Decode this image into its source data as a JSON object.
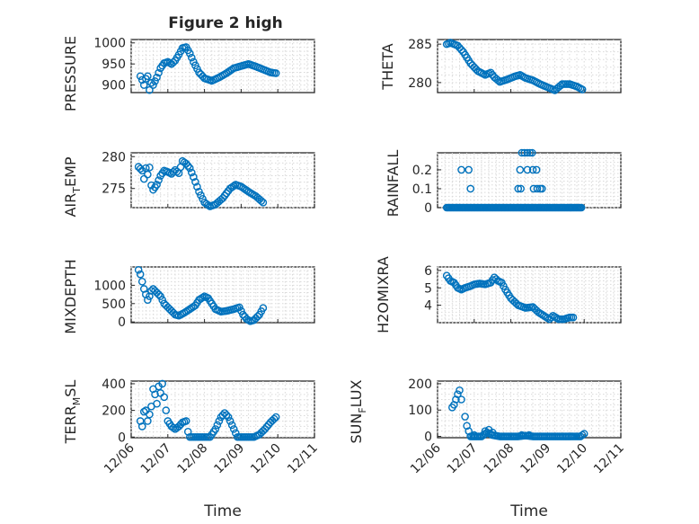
{
  "figure_title": "Figure 2 high",
  "colors": {
    "marker": "#0072bd",
    "axes": "#262626",
    "grid": "#d9d9d9",
    "background": "#ffffff"
  },
  "chart_data": [
    {
      "type": "scatter",
      "name": "PRESSURE",
      "ylabel": "PRESSURE",
      "title": "Figure 2 high",
      "xlim": [
        0,
        5
      ],
      "ylim": [
        882,
        1008
      ],
      "yticks": [
        900,
        950,
        1000
      ],
      "ytick_labels": [
        "900",
        "950",
        "1000"
      ],
      "xticks": [
        0,
        1,
        2,
        3,
        4,
        5
      ],
      "xtick_labels": [],
      "grid": true,
      "keys": [
        [
          0.25,
          921
        ],
        [
          0.3,
          912
        ],
        [
          0.35,
          900
        ],
        [
          0.4,
          915
        ],
        [
          0.45,
          921
        ],
        [
          0.5,
          888
        ],
        [
          0.55,
          905
        ],
        [
          0.6,
          900
        ],
        [
          0.7,
          918
        ],
        [
          0.8,
          940
        ],
        [
          0.9,
          952
        ],
        [
          1.0,
          955
        ],
        [
          1.1,
          950
        ],
        [
          1.2,
          958
        ],
        [
          1.3,
          972
        ],
        [
          1.4,
          988
        ],
        [
          1.5,
          990
        ],
        [
          1.6,
          975
        ],
        [
          1.7,
          955
        ],
        [
          1.85,
          930
        ],
        [
          2.0,
          916
        ],
        [
          2.2,
          910
        ],
        [
          2.4,
          918
        ],
        [
          2.6,
          928
        ],
        [
          2.8,
          940
        ],
        [
          3.0,
          945
        ],
        [
          3.2,
          950
        ],
        [
          3.4,
          944
        ],
        [
          3.6,
          937
        ],
        [
          3.8,
          930
        ],
        [
          3.95,
          928
        ]
      ]
    },
    {
      "type": "scatter",
      "name": "THETA",
      "ylabel": "THETA",
      "xlim": [
        0,
        5
      ],
      "ylim": [
        278.7,
        285.6
      ],
      "yticks": [
        280,
        285
      ],
      "ytick_labels": [
        "280",
        "285"
      ],
      "xticks": [
        0,
        1,
        2,
        3,
        4,
        5
      ],
      "xtick_labels": [],
      "grid": true,
      "keys": [
        [
          0.25,
          285.0
        ],
        [
          0.35,
          285.2
        ],
        [
          0.45,
          285.0
        ],
        [
          0.55,
          284.8
        ],
        [
          0.7,
          284.0
        ],
        [
          0.9,
          282.5
        ],
        [
          1.1,
          281.5
        ],
        [
          1.3,
          281.0
        ],
        [
          1.45,
          281.3
        ],
        [
          1.55,
          280.7
        ],
        [
          1.7,
          280.1
        ],
        [
          1.9,
          280.4
        ],
        [
          2.1,
          280.8
        ],
        [
          2.25,
          281.0
        ],
        [
          2.4,
          280.6
        ],
        [
          2.6,
          280.3
        ],
        [
          2.8,
          279.8
        ],
        [
          3.0,
          279.4
        ],
        [
          3.2,
          279.0
        ],
        [
          3.4,
          279.8
        ],
        [
          3.6,
          279.8
        ],
        [
          3.8,
          279.5
        ],
        [
          3.95,
          279.1
        ]
      ]
    },
    {
      "type": "scatter",
      "name": "AIR_TEMP",
      "ylabel": "AIR_TEMP",
      "xlim": [
        0,
        5
      ],
      "ylim": [
        272,
        280.6
      ],
      "yticks": [
        275,
        280
      ],
      "ytick_labels": [
        "275",
        "280"
      ],
      "xticks": [
        0,
        1,
        2,
        3,
        4,
        5
      ],
      "xtick_labels": [],
      "grid": true,
      "keys": [
        [
          0.2,
          278.4
        ],
        [
          0.3,
          277.8
        ],
        [
          0.35,
          276.5
        ],
        [
          0.4,
          278.2
        ],
        [
          0.45,
          277.2
        ],
        [
          0.5,
          278.3
        ],
        [
          0.55,
          275.5
        ],
        [
          0.6,
          274.8
        ],
        [
          0.7,
          275.6
        ],
        [
          0.8,
          277.0
        ],
        [
          0.9,
          277.8
        ],
        [
          1.0,
          277.6
        ],
        [
          1.1,
          277.3
        ],
        [
          1.2,
          277.9
        ],
        [
          1.3,
          277.4
        ],
        [
          1.4,
          279.3
        ],
        [
          1.5,
          278.9
        ],
        [
          1.6,
          278.2
        ],
        [
          1.7,
          276.8
        ],
        [
          1.85,
          274.5
        ],
        [
          2.0,
          272.8
        ],
        [
          2.15,
          272.2
        ],
        [
          2.3,
          272.5
        ],
        [
          2.5,
          273.5
        ],
        [
          2.7,
          275.0
        ],
        [
          2.85,
          275.6
        ],
        [
          3.0,
          275.3
        ],
        [
          3.2,
          274.5
        ],
        [
          3.4,
          273.8
        ],
        [
          3.6,
          272.8
        ]
      ]
    },
    {
      "type": "scatter",
      "name": "RAINFALL",
      "ylabel": "RAINFALL",
      "xlim": [
        0,
        5
      ],
      "ylim": [
        0,
        0.29
      ],
      "yticks": [
        0,
        0.1,
        0.2
      ],
      "ytick_labels": [
        "0",
        "0.1",
        "0.2"
      ],
      "xticks": [
        0,
        1,
        2,
        3,
        4,
        5
      ],
      "xtick_labels": [],
      "grid": true,
      "baseline": {
        "x_start": 0.25,
        "x_end": 3.95,
        "y": 0
      },
      "nonzero": [
        [
          0.65,
          0.2
        ],
        [
          0.85,
          0.2
        ],
        [
          0.9,
          0.1
        ],
        [
          2.2,
          0.1
        ],
        [
          2.27,
          0.1
        ],
        [
          2.25,
          0.2
        ],
        [
          2.3,
          0.29
        ],
        [
          2.37,
          0.29
        ],
        [
          2.45,
          0.29
        ],
        [
          2.52,
          0.29
        ],
        [
          2.58,
          0.29
        ],
        [
          2.45,
          0.2
        ],
        [
          2.6,
          0.2
        ],
        [
          2.7,
          0.2
        ],
        [
          2.62,
          0.1
        ],
        [
          2.72,
          0.1
        ],
        [
          2.85,
          0.1
        ],
        [
          2.8,
          0.1
        ]
      ]
    },
    {
      "type": "scatter",
      "name": "MIXDEPTH",
      "ylabel": "MIXDEPTH",
      "xlim": [
        0,
        5
      ],
      "ylim": [
        -20,
        1500
      ],
      "yticks": [
        0,
        500,
        1000
      ],
      "ytick_labels": [
        "0",
        "500",
        "1000"
      ],
      "xticks": [
        0,
        1,
        2,
        3,
        4,
        5
      ],
      "xtick_labels": [],
      "grid": true,
      "keys": [
        [
          0.2,
          1420
        ],
        [
          0.25,
          1300
        ],
        [
          0.3,
          1100
        ],
        [
          0.35,
          900
        ],
        [
          0.4,
          750
        ],
        [
          0.45,
          600
        ],
        [
          0.5,
          700
        ],
        [
          0.55,
          850
        ],
        [
          0.6,
          900
        ],
        [
          0.7,
          800
        ],
        [
          0.8,
          700
        ],
        [
          0.9,
          500
        ],
        [
          1.0,
          400
        ],
        [
          1.1,
          300
        ],
        [
          1.2,
          200
        ],
        [
          1.3,
          170
        ],
        [
          1.45,
          250
        ],
        [
          1.6,
          350
        ],
        [
          1.75,
          450
        ],
        [
          1.85,
          600
        ],
        [
          2.0,
          700
        ],
        [
          2.1,
          650
        ],
        [
          2.2,
          500
        ],
        [
          2.3,
          350
        ],
        [
          2.45,
          280
        ],
        [
          2.6,
          300
        ],
        [
          2.8,
          350
        ],
        [
          2.95,
          400
        ],
        [
          3.05,
          200
        ],
        [
          3.15,
          80
        ],
        [
          3.25,
          20
        ],
        [
          3.35,
          50
        ],
        [
          3.5,
          200
        ],
        [
          3.6,
          380
        ]
      ]
    },
    {
      "type": "scatter",
      "name": "H2OMIXRA",
      "ylabel": "H2OMIXRA",
      "xlim": [
        0,
        5
      ],
      "ylim": [
        3.0,
        6.2
      ],
      "yticks": [
        4,
        5,
        6
      ],
      "ytick_labels": [
        "4",
        "5",
        "6"
      ],
      "xticks": [
        0,
        1,
        2,
        3,
        4,
        5
      ],
      "xtick_labels": [],
      "grid": true,
      "keys": [
        [
          0.25,
          5.7
        ],
        [
          0.35,
          5.4
        ],
        [
          0.45,
          5.3
        ],
        [
          0.55,
          5.0
        ],
        [
          0.65,
          4.9
        ],
        [
          0.75,
          5.0
        ],
        [
          0.9,
          5.1
        ],
        [
          1.0,
          5.2
        ],
        [
          1.15,
          5.25
        ],
        [
          1.3,
          5.2
        ],
        [
          1.45,
          5.3
        ],
        [
          1.55,
          5.6
        ],
        [
          1.65,
          5.4
        ],
        [
          1.75,
          5.3
        ],
        [
          1.85,
          4.9
        ],
        [
          2.0,
          4.4
        ],
        [
          2.2,
          4.0
        ],
        [
          2.4,
          3.85
        ],
        [
          2.6,
          3.9
        ],
        [
          2.75,
          3.6
        ],
        [
          2.9,
          3.4
        ],
        [
          3.05,
          3.2
        ],
        [
          3.15,
          3.4
        ],
        [
          3.3,
          3.2
        ],
        [
          3.45,
          3.2
        ],
        [
          3.6,
          3.3
        ],
        [
          3.7,
          3.3
        ]
      ]
    },
    {
      "type": "scatter",
      "name": "TERR_MSL",
      "ylabel": "TERR_MSL",
      "xlim": [
        0,
        5
      ],
      "ylim": [
        -5,
        420
      ],
      "yticks": [
        0,
        200,
        400
      ],
      "ytick_labels": [
        "0",
        "200",
        "400"
      ],
      "xticks": [
        0,
        1,
        2,
        3,
        4,
        5
      ],
      "xtick_labels": [
        "12/06",
        "12/07",
        "12/08",
        "12/09",
        "12/10",
        "12/11"
      ],
      "xlabel": "Time",
      "grid": true,
      "scatter": [
        [
          0.25,
          120
        ],
        [
          0.3,
          80
        ],
        [
          0.35,
          190
        ],
        [
          0.4,
          200
        ],
        [
          0.45,
          120
        ],
        [
          0.5,
          170
        ],
        [
          0.55,
          230
        ],
        [
          0.6,
          360
        ],
        [
          0.65,
          320
        ],
        [
          0.7,
          250
        ],
        [
          0.75,
          380
        ],
        [
          0.8,
          330
        ],
        [
          0.85,
          400
        ],
        [
          0.9,
          300
        ],
        [
          0.95,
          200
        ]
      ],
      "keys": [
        [
          1.0,
          120
        ],
        [
          1.1,
          80
        ],
        [
          1.2,
          60
        ],
        [
          1.3,
          80
        ],
        [
          1.4,
          110
        ],
        [
          1.5,
          120
        ],
        [
          1.55,
          40
        ],
        [
          1.6,
          0
        ],
        [
          1.8,
          0
        ],
        [
          2.0,
          0
        ],
        [
          2.15,
          0
        ],
        [
          2.3,
          60
        ],
        [
          2.45,
          150
        ],
        [
          2.55,
          180
        ],
        [
          2.65,
          150
        ],
        [
          2.8,
          60
        ],
        [
          2.9,
          0
        ],
        [
          3.05,
          0
        ],
        [
          3.2,
          0
        ],
        [
          3.35,
          0
        ],
        [
          3.5,
          20
        ],
        [
          3.65,
          60
        ],
        [
          3.8,
          110
        ],
        [
          3.95,
          150
        ]
      ]
    },
    {
      "type": "scatter",
      "name": "SUN_FLUX",
      "ylabel": "SUN_FLUX",
      "xlim": [
        0,
        5
      ],
      "ylim": [
        -5,
        210
      ],
      "yticks": [
        0,
        100,
        200
      ],
      "ytick_labels": [
        "0",
        "100",
        "200"
      ],
      "xticks": [
        0,
        1,
        2,
        3,
        4,
        5
      ],
      "xtick_labels": [
        "12/06",
        "12/07",
        "12/08",
        "12/09",
        "12/10",
        "12/11"
      ],
      "xlabel": "Time",
      "grid": true,
      "scatter": [
        [
          0.4,
          110
        ],
        [
          0.45,
          120
        ],
        [
          0.5,
          140
        ],
        [
          0.55,
          160
        ],
        [
          0.6,
          175
        ],
        [
          0.65,
          140
        ],
        [
          0.75,
          75
        ],
        [
          0.8,
          40
        ],
        [
          0.85,
          20
        ],
        [
          1.0,
          5
        ],
        [
          1.3,
          20
        ],
        [
          1.4,
          25
        ],
        [
          1.5,
          15
        ],
        [
          2.3,
          5
        ],
        [
          2.5,
          5
        ]
      ],
      "keys": [
        [
          0.9,
          0
        ],
        [
          1.2,
          0
        ],
        [
          1.35,
          15
        ],
        [
          1.5,
          5
        ],
        [
          1.7,
          0
        ],
        [
          2.2,
          0
        ],
        [
          2.4,
          3
        ],
        [
          2.6,
          0
        ],
        [
          3.0,
          0
        ],
        [
          3.4,
          0
        ],
        [
          3.7,
          0
        ],
        [
          3.9,
          0
        ],
        [
          4.0,
          10
        ]
      ]
    }
  ]
}
